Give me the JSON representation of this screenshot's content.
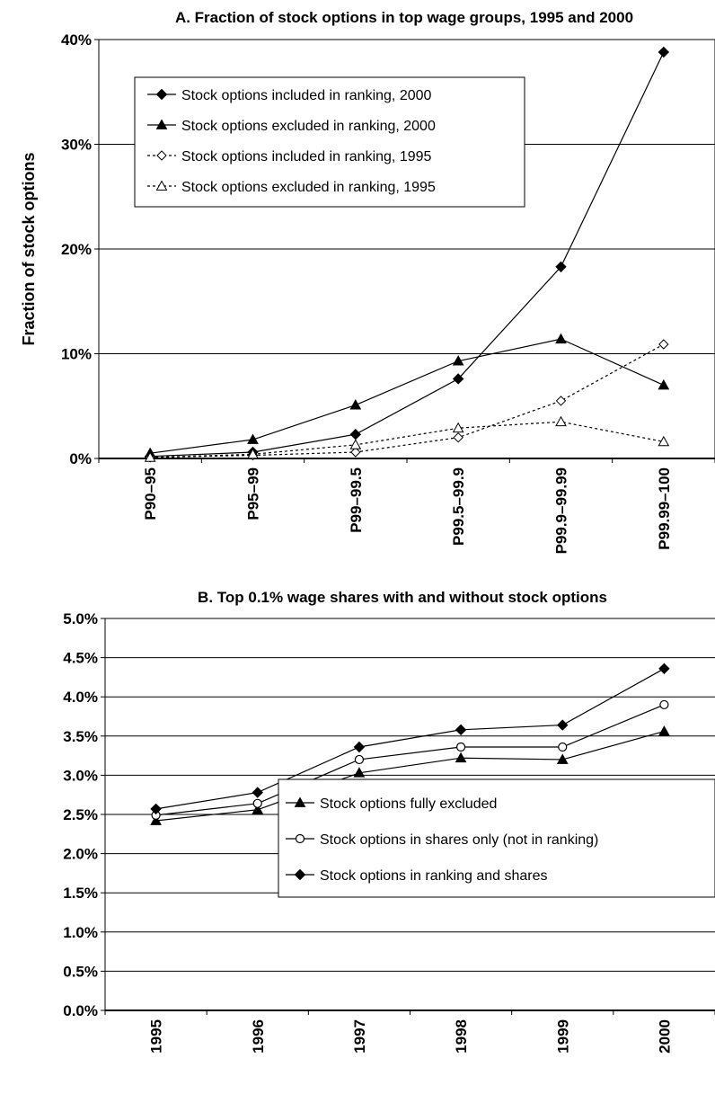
{
  "chart_data": [
    {
      "type": "line",
      "title": "A. Fraction of stock options in top wage groups, 1995 and 2000",
      "ylabel": "Fraction of stock options",
      "xlabel": "",
      "ylim": [
        0,
        40
      ],
      "yticks": [
        "0%",
        "10%",
        "20%",
        "30%",
        "40%"
      ],
      "grid": true,
      "legend_position": "top-left",
      "categories": [
        "P90–95",
        "P95–99",
        "P99–99.5",
        "P99.5–99.9",
        "P99.9–99.99",
        "P99.99–100"
      ],
      "series": [
        {
          "name": "Stock options included in ranking, 2000",
          "marker": "diamond-filled",
          "dash": false,
          "values": [
            0.2,
            0.6,
            2.3,
            7.6,
            18.3,
            38.8
          ]
        },
        {
          "name": "Stock options excluded in ranking, 2000",
          "marker": "triangle-filled",
          "dash": false,
          "values": [
            0.5,
            1.8,
            5.1,
            9.3,
            11.4,
            7.0
          ]
        },
        {
          "name": "Stock options included in ranking, 1995",
          "marker": "diamond-open",
          "dash": true,
          "values": [
            0.1,
            0.3,
            0.6,
            2.0,
            5.5,
            10.9
          ]
        },
        {
          "name": "Stock options excluded in ranking, 1995",
          "marker": "triangle-open",
          "dash": true,
          "values": [
            0.1,
            0.4,
            1.3,
            2.9,
            3.5,
            1.6
          ]
        }
      ]
    },
    {
      "type": "line",
      "title": "B. Top 0.1% wage shares with and without stock options",
      "ylabel": "",
      "xlabel": "",
      "ylim": [
        0,
        5
      ],
      "yticks": [
        "0.0%",
        "0.5%",
        "1.0%",
        "1.5%",
        "2.0%",
        "2.5%",
        "3.0%",
        "3.5%",
        "4.0%",
        "4.5%",
        "5.0%"
      ],
      "grid": true,
      "legend_position": "bottom-right",
      "categories": [
        "1995",
        "1996",
        "1997",
        "1998",
        "1999",
        "2000"
      ],
      "series": [
        {
          "name": "Stock options fully excluded",
          "marker": "triangle-filled",
          "dash": false,
          "values": [
            2.42,
            2.56,
            3.03,
            3.22,
            3.2,
            3.56
          ]
        },
        {
          "name": "Stock options in shares only (not in ranking)",
          "marker": "circle-open",
          "dash": false,
          "values": [
            2.49,
            2.64,
            3.2,
            3.36,
            3.36,
            3.9
          ]
        },
        {
          "name": "Stock options in ranking and shares",
          "marker": "diamond-filled",
          "dash": false,
          "values": [
            2.57,
            2.78,
            3.36,
            3.58,
            3.64,
            4.36
          ]
        }
      ]
    }
  ]
}
